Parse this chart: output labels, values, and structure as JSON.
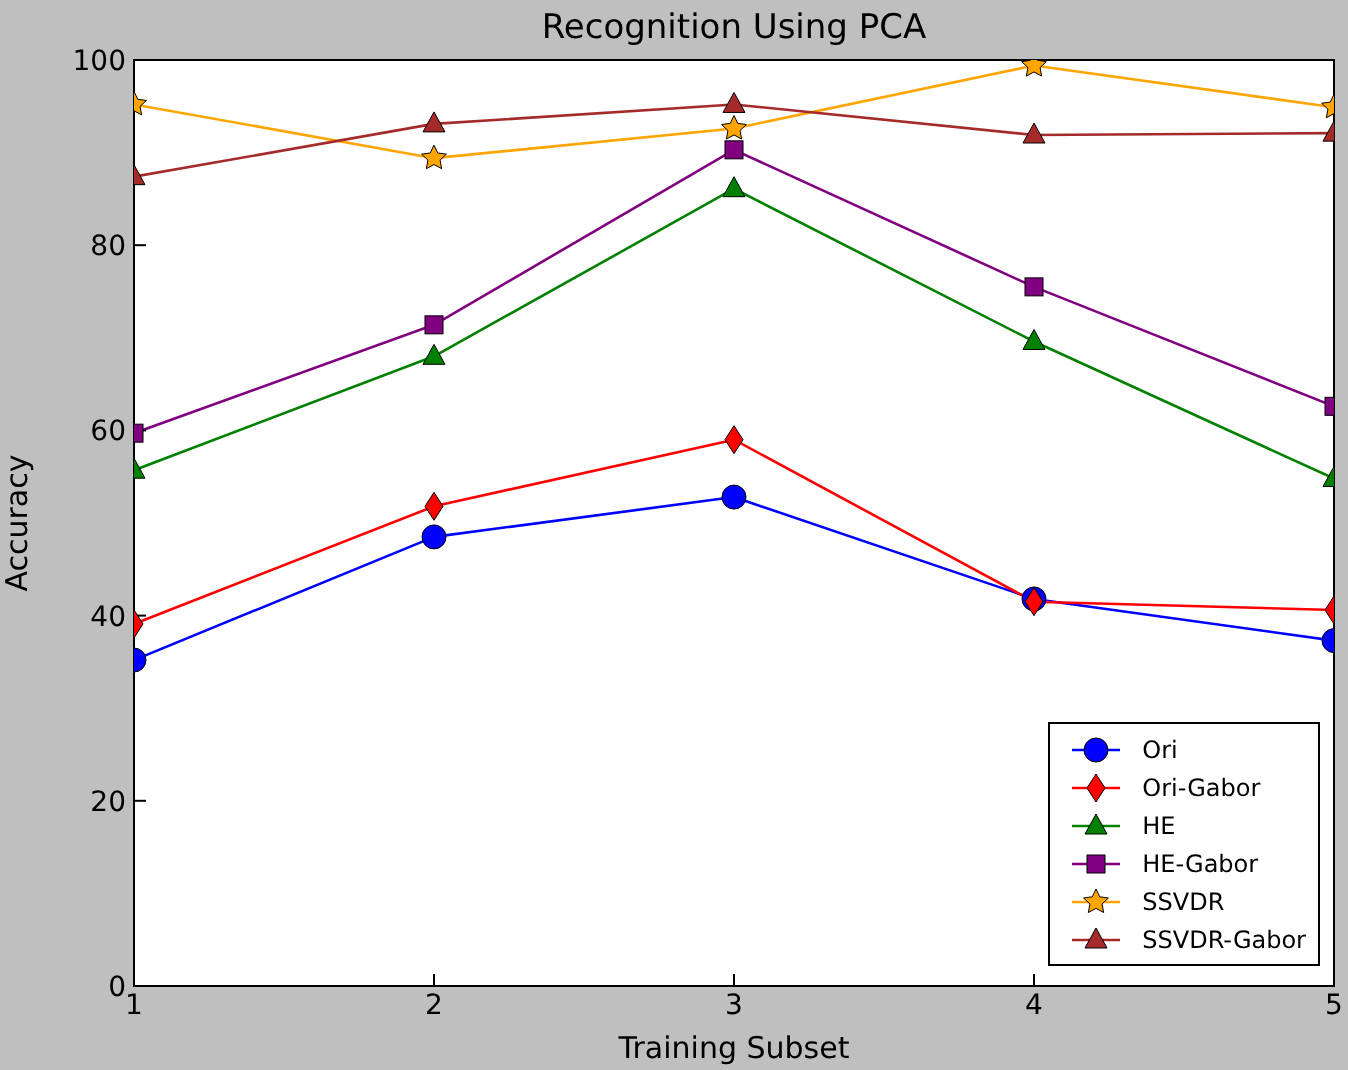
{
  "chart_data": {
    "type": "line",
    "title": "Recognition Using PCA",
    "xlabel": "Training Subset",
    "ylabel": "Accuracy",
    "x": [
      1,
      2,
      3,
      4,
      5
    ],
    "xlim": [
      1,
      5
    ],
    "xticks": [
      1,
      2,
      3,
      4,
      5
    ],
    "ylim": [
      0,
      100
    ],
    "yticks": [
      0,
      20,
      40,
      60,
      80,
      100
    ],
    "grid": false,
    "legend": "bottom right",
    "series": [
      {
        "name": "Ori",
        "color": "#0000ff",
        "marker": "circle",
        "values": [
          35.2,
          48.5,
          52.8,
          41.8,
          37.3
        ]
      },
      {
        "name": "Ori-Gabor",
        "color": "#ff0000",
        "marker": "diamond",
        "values": [
          39.1,
          51.8,
          59.0,
          41.5,
          40.6
        ]
      },
      {
        "name": "HE",
        "color": "#008000",
        "marker": "triangle",
        "values": [
          55.7,
          68.0,
          86.1,
          69.6,
          54.8
        ]
      },
      {
        "name": "HE-Gabor",
        "color": "#800080",
        "marker": "square",
        "values": [
          59.7,
          71.4,
          90.3,
          75.5,
          62.6
        ]
      },
      {
        "name": "SSVDR",
        "color": "#ffa500",
        "marker": "star",
        "values": [
          95.2,
          89.4,
          92.6,
          99.4,
          94.9
        ]
      },
      {
        "name": "SSVDR-Gabor",
        "color": "#a52a2a",
        "marker": "triangle",
        "values": [
          87.4,
          93.1,
          95.2,
          91.9,
          92.1
        ]
      }
    ]
  }
}
